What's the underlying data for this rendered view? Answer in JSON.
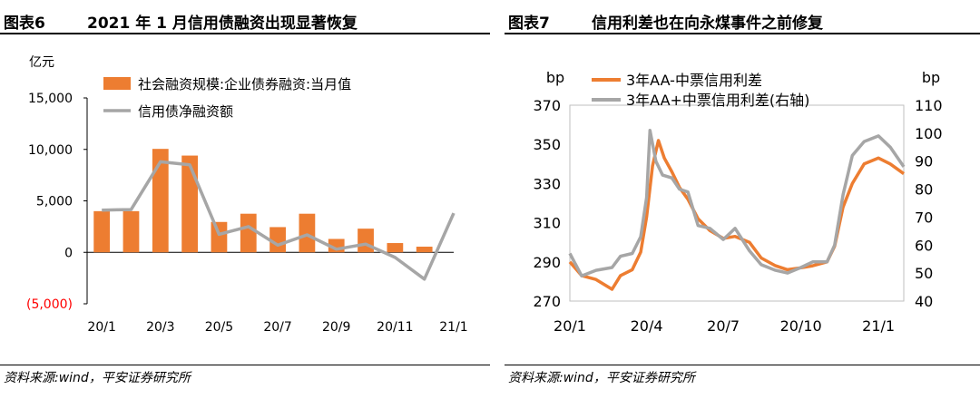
{
  "charts": [
    {
      "fig_label": "图表6",
      "title": "2021 年 1 月信用债融资出现显著恢复",
      "source": "资料来源:wind，平安证券研究所",
      "chart_data": {
        "type": "bar",
        "unit": "亿元",
        "categories": [
          "20/1",
          "20/2",
          "20/3",
          "20/4",
          "20/5",
          "20/6",
          "20/7",
          "20/8",
          "20/9",
          "20/10",
          "20/11",
          "20/12",
          "21/1"
        ],
        "xtick_labels": [
          "20/1",
          "20/3",
          "20/5",
          "20/7",
          "20/9",
          "20/11",
          "21/1"
        ],
        "yticks": [
          -5000,
          0,
          5000,
          10000,
          15000
        ],
        "ytick_labels": [
          "(5,000)",
          "0",
          "5,000",
          "10,000",
          "15,000"
        ],
        "ylim": [
          -5000,
          15000
        ],
        "grid": false,
        "legend_position": "top-left",
        "series": [
          {
            "name": "社会融资规模:企业债券融资:当月值",
            "type": "bar",
            "color": "#ED7D31",
            "values": [
              4000,
              4000,
              10050,
              9400,
              2950,
              3750,
              2450,
              3750,
              1300,
              2300,
              900,
              550,
              null
            ]
          },
          {
            "name": "信用债净融资额",
            "type": "line",
            "color": "#A6A6A6",
            "values": [
              4100,
              4150,
              8800,
              8500,
              1750,
              2500,
              700,
              1700,
              300,
              800,
              -500,
              -2600,
              3800
            ]
          }
        ],
        "colors": {
          "negative_tick": "#FF0000"
        }
      }
    },
    {
      "fig_label": "图表7",
      "title": "信用利差也在向永煤事件之前修复",
      "source": "资料来源:wind，平安证券研究所",
      "chart_data": {
        "type": "line",
        "ylabel_left": "bp",
        "ylabel_right": "bp",
        "ylim_left": [
          270,
          370
        ],
        "yticks_left": [
          270,
          290,
          310,
          330,
          350,
          370
        ],
        "ylim_right": [
          40,
          110
        ],
        "yticks_right": [
          40,
          50,
          60,
          70,
          80,
          90,
          100,
          110
        ],
        "xlim": [
          "2020-01-01",
          "2021-01-31"
        ],
        "xtick_labels": [
          "20/1",
          "20/4",
          "20/7",
          "20/10",
          "21/1"
        ],
        "xtick_dates": [
          "2020-01-01",
          "2020-04-01",
          "2020-07-01",
          "2020-10-01",
          "2021-01-01"
        ],
        "grid": false,
        "legend_position": "top",
        "series": [
          {
            "name": "3年AA-中票信用利差",
            "axis": "left",
            "color": "#ED7D31",
            "x": [
              "2020-01-01",
              "2020-01-15",
              "2020-02-01",
              "2020-02-20",
              "2020-03-01",
              "2020-03-15",
              "2020-03-25",
              "2020-04-01",
              "2020-04-08",
              "2020-04-15",
              "2020-04-22",
              "2020-05-01",
              "2020-05-10",
              "2020-05-20",
              "2020-06-01",
              "2020-06-15",
              "2020-07-01",
              "2020-07-15",
              "2020-08-01",
              "2020-08-15",
              "2020-09-01",
              "2020-09-15",
              "2020-10-01",
              "2020-10-15",
              "2020-11-01",
              "2020-11-10",
              "2020-11-20",
              "2020-12-01",
              "2020-12-15",
              "2021-01-01",
              "2021-01-15",
              "2021-01-31"
            ],
            "y": [
              290,
              283,
              281,
              276,
              283,
              286,
              295,
              313,
              339,
              352,
              343,
              336,
              328,
              322,
              312,
              306,
              302,
              303,
              300,
              292,
              288,
              286,
              287,
              288,
              290,
              298,
              318,
              330,
              340,
              343,
              340,
              335
            ]
          },
          {
            "name": "3年AA+中票信用利差(右轴)",
            "axis": "right",
            "color": "#A6A6A6",
            "x": [
              "2020-01-01",
              "2020-01-15",
              "2020-02-01",
              "2020-02-20",
              "2020-03-01",
              "2020-03-15",
              "2020-03-25",
              "2020-04-01",
              "2020-04-05",
              "2020-04-12",
              "2020-04-20",
              "2020-05-01",
              "2020-05-10",
              "2020-05-20",
              "2020-06-01",
              "2020-06-15",
              "2020-07-01",
              "2020-07-15",
              "2020-08-01",
              "2020-08-15",
              "2020-09-01",
              "2020-09-15",
              "2020-10-01",
              "2020-10-15",
              "2020-11-01",
              "2020-11-10",
              "2020-11-20",
              "2020-12-01",
              "2020-12-15",
              "2021-01-01",
              "2021-01-15",
              "2021-01-31"
            ],
            "y": [
              57,
              49,
              51,
              52,
              56,
              57,
              63,
              77,
              101,
              90,
              85,
              84,
              80,
              79,
              67,
              66,
              62,
              66,
              58,
              53,
              51,
              50,
              52,
              54,
              54,
              60,
              78,
              92,
              97,
              99,
              95,
              88
            ]
          }
        ]
      }
    }
  ]
}
